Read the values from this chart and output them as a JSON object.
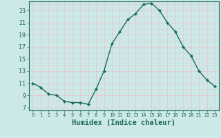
{
  "x": [
    0,
    1,
    2,
    3,
    4,
    5,
    6,
    7,
    8,
    9,
    10,
    11,
    12,
    13,
    14,
    15,
    16,
    17,
    18,
    19,
    20,
    21,
    22,
    23
  ],
  "y": [
    11,
    10.3,
    9.2,
    9.0,
    8.0,
    7.8,
    7.8,
    7.5,
    10.0,
    13.0,
    17.5,
    19.5,
    21.5,
    22.5,
    24.0,
    24.2,
    23.0,
    21.0,
    19.5,
    17.0,
    15.5,
    13.0,
    11.5,
    10.5
  ],
  "line_color": "#1a6b5a",
  "marker": "D",
  "marker_size": 2.2,
  "bg_color": "#cce8e8",
  "grid_major_color": "#e8c8c8",
  "grid_minor_color": "#dcd0d0",
  "xlabel": "Humidex (Indice chaleur)",
  "xlim": [
    -0.5,
    23.5
  ],
  "ylim": [
    6.5,
    24.5
  ],
  "yticks": [
    7,
    9,
    11,
    13,
    15,
    17,
    19,
    21,
    23
  ],
  "xticks": [
    0,
    1,
    2,
    3,
    4,
    5,
    6,
    7,
    8,
    9,
    10,
    11,
    12,
    13,
    14,
    15,
    16,
    17,
    18,
    19,
    20,
    21,
    22,
    23
  ],
  "tick_color": "#1a6b5a",
  "spine_color": "#1a6b5a",
  "tick_labelsize": 5.5,
  "xlabel_fontsize": 7.5
}
